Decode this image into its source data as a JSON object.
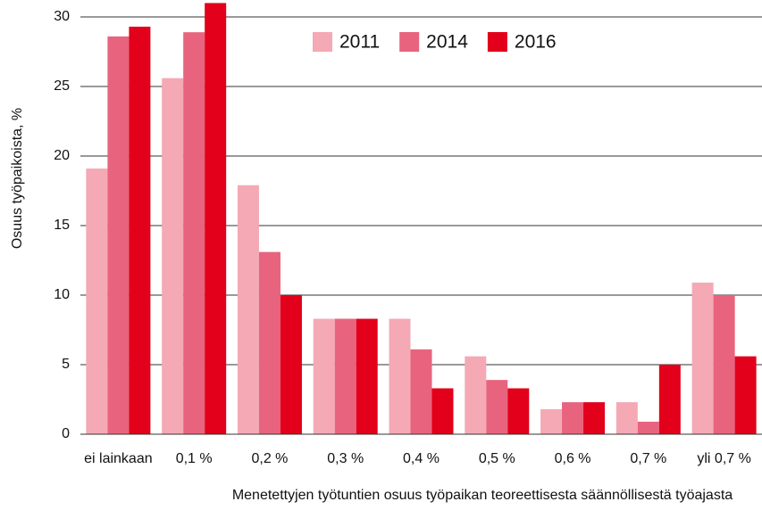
{
  "chart_data": {
    "type": "bar",
    "xlabel": "Menetettyjen työtuntien osuus työpaikan teoreettisesta säännöllisestä työajasta",
    "ylabel": "Osuus työpaikoista, %",
    "categories": [
      "ei lainkaan",
      "0,1 %",
      "0,2 %",
      "0,3 %",
      "0,4 %",
      "0,5 %",
      "0,6 %",
      "0,7 %",
      "yli 0,7 %"
    ],
    "series": [
      {
        "name": "2011",
        "color": "#f4a9b5",
        "values": [
          19.1,
          25.6,
          17.9,
          8.3,
          8.3,
          5.6,
          1.8,
          2.3,
          10.9
        ]
      },
      {
        "name": "2014",
        "color": "#e8637e",
        "values": [
          28.6,
          28.9,
          13.1,
          8.3,
          6.1,
          3.9,
          2.3,
          0.9,
          10.0
        ]
      },
      {
        "name": "2016",
        "color": "#e2001a",
        "values": [
          29.3,
          31,
          10.0,
          8.3,
          3.3,
          3.3,
          2.3,
          5.0,
          5.6
        ]
      }
    ],
    "ylim": [
      0,
      30
    ],
    "yticks": [
      0,
      5,
      10,
      15,
      20,
      25,
      30
    ],
    "grid": true,
    "legend": "top"
  }
}
